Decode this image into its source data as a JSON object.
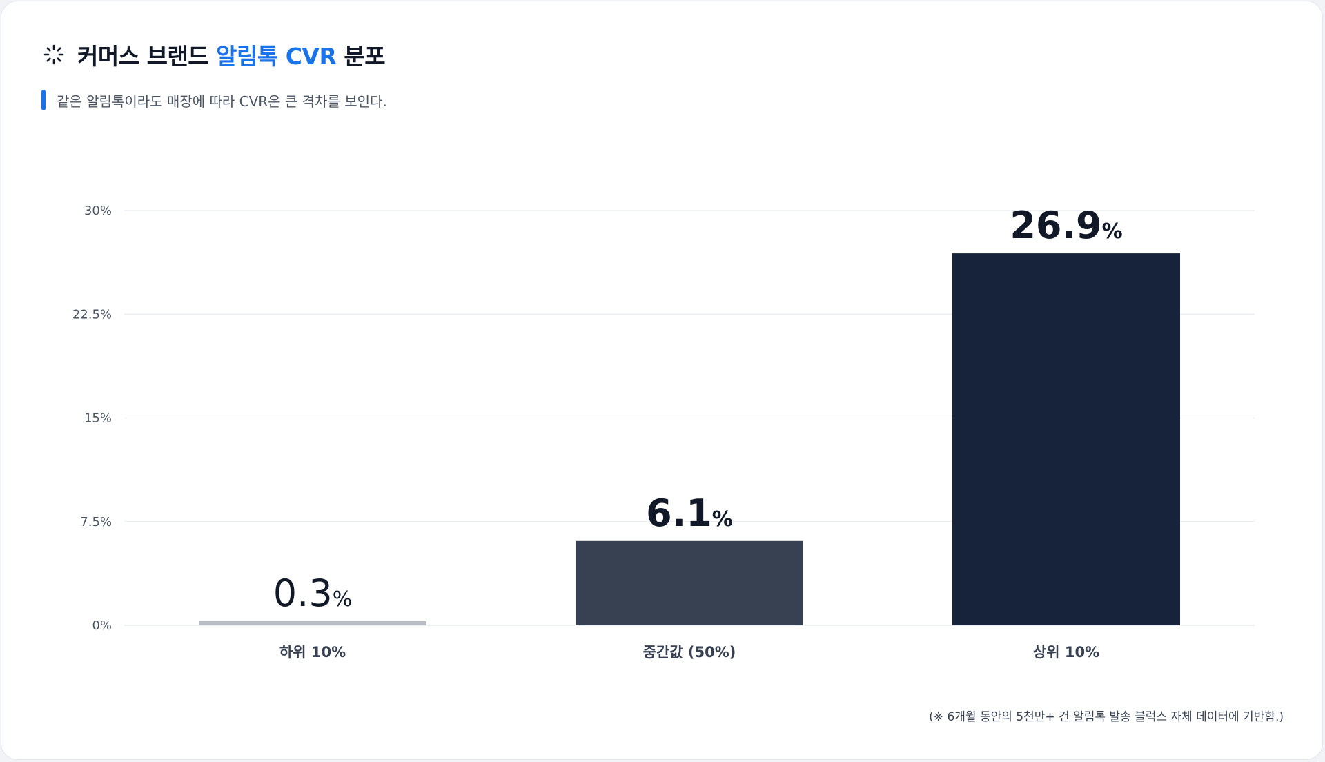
{
  "header": {
    "title_prefix": "커머스 브랜드 ",
    "title_accent": "알림톡 CVR",
    "title_suffix": " 분포",
    "subtitle": "같은 알림톡이라도 매장에 따라 CVR은 큰 격차를 보인다.",
    "icon": "spinner-icon"
  },
  "footnote": "(※ 6개월 동안의 5천만+ 건 알림톡 발송 블럭스 자체 데이터에 기반함.)",
  "colors": {
    "accent": "#1a73e8",
    "grid": "#e5e7eb",
    "axis_text": "#4b5563",
    "value_text": "#111827"
  },
  "chart_data": {
    "type": "bar",
    "categories": [
      "하위 10%",
      "중간값 (50%)",
      "상위 10%"
    ],
    "values": [
      0.3,
      6.1,
      26.9
    ],
    "value_labels": [
      "0.3",
      "6.1",
      "26.9"
    ],
    "value_unit": "%",
    "bar_colors": [
      "#b8bcc4",
      "#374151",
      "#16233a"
    ],
    "ylim": [
      0,
      30
    ],
    "yticks": [
      0,
      7.5,
      15,
      22.5,
      30
    ],
    "ytick_labels": [
      "0%",
      "7.5%",
      "15%",
      "22.5%",
      "30%"
    ],
    "grid": true,
    "title": "커머스 브랜드 알림톡 CVR 분포",
    "xlabel": "",
    "ylabel": ""
  }
}
